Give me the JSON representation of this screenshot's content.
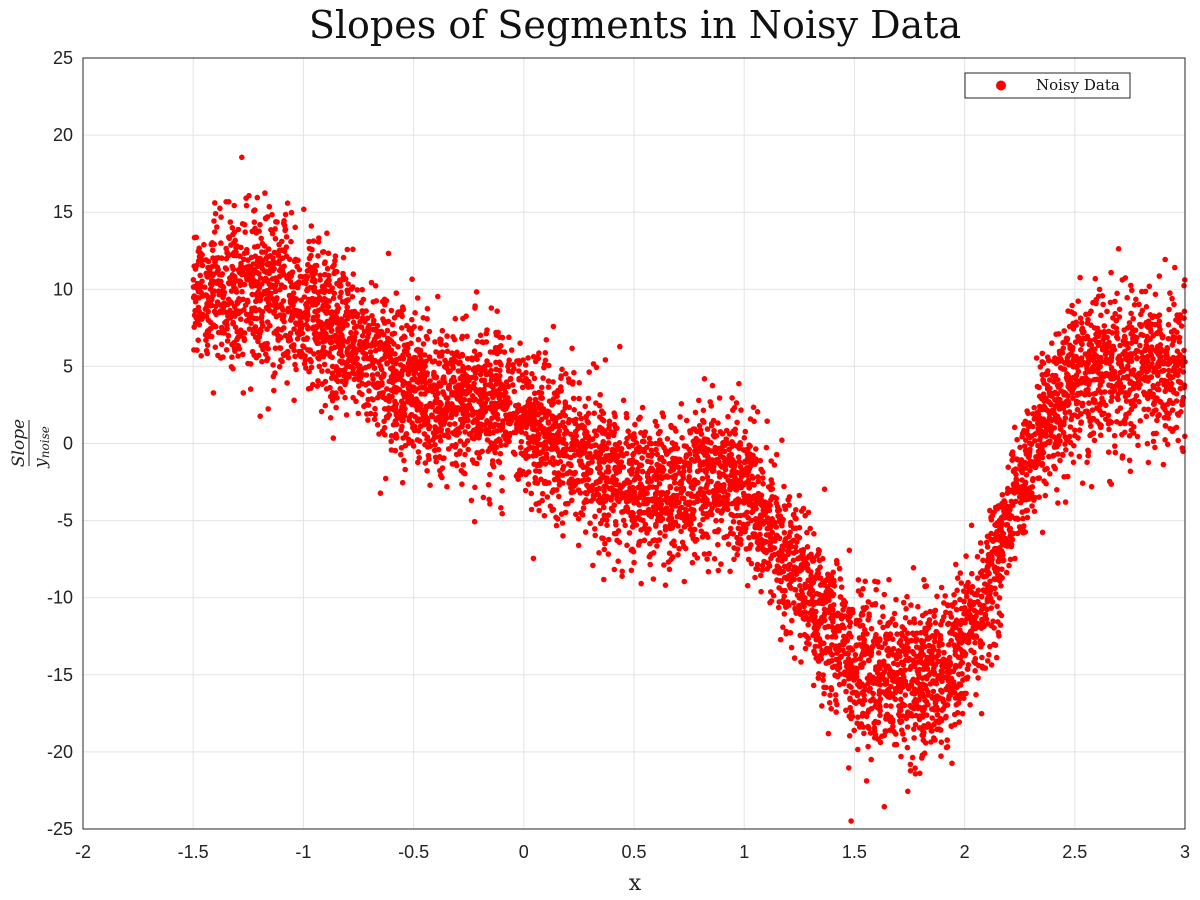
{
  "chart_data": {
    "type": "scatter",
    "title": "Slopes of Segments in Noisy Data",
    "xlabel": "x",
    "ylabel": {
      "numerator": "Slope",
      "denominator_base": "y",
      "denominator_sub": "noise"
    },
    "xlim": [
      -2,
      3
    ],
    "ylim": [
      -25,
      25
    ],
    "xticks": [
      -2,
      -1.5,
      -1,
      -0.5,
      0,
      0.5,
      1,
      1.5,
      2,
      2.5,
      3
    ],
    "yticks": [
      -25,
      -20,
      -15,
      -10,
      -5,
      0,
      5,
      10,
      15,
      20,
      25
    ],
    "grid": true,
    "legend": {
      "placement": "top-right",
      "entries": [
        "Noisy Data"
      ]
    },
    "series": [
      {
        "name": "Noisy Data",
        "color": "#ff0000",
        "x_range": [
          -1.5,
          3
        ],
        "trend": {
          "x": [
            -1.5,
            -1.3,
            -1.1,
            -0.9,
            -0.7,
            -0.5,
            -0.3,
            -0.1,
            0.1,
            0.3,
            0.5,
            0.7,
            0.9,
            1.0,
            1.1,
            1.2,
            1.3,
            1.4,
            1.5,
            1.6,
            1.7,
            1.8,
            1.9,
            2.0,
            2.1,
            2.2,
            2.3,
            2.4,
            2.5,
            2.6,
            2.7,
            2.8,
            2.9,
            3.0
          ],
          "y": [
            9.5,
            10,
            9.5,
            8,
            5.5,
            3.5,
            2.5,
            2.5,
            1,
            -1,
            -3,
            -3,
            -2,
            -3,
            -5,
            -7.5,
            -10,
            -12,
            -14.5,
            -15,
            -15,
            -15.5,
            -15,
            -13,
            -10,
            -5,
            -1,
            2,
            4.5,
            5,
            4.5,
            5,
            5,
            5
          ],
          "spread_sd": [
            2.2,
            2.5,
            2.6,
            2.4,
            2.4,
            2.4,
            2.4,
            2.3,
            2.3,
            2.3,
            2.3,
            2.3,
            2.3,
            2.3,
            2.2,
            2.2,
            2.3,
            2.3,
            2.5,
            2.6,
            2.6,
            2.6,
            2.6,
            2.3,
            2.2,
            2.1,
            2.0,
            2.2,
            2.3,
            2.4,
            2.5,
            2.5,
            2.5,
            2.5
          ]
        }
      }
    ]
  }
}
